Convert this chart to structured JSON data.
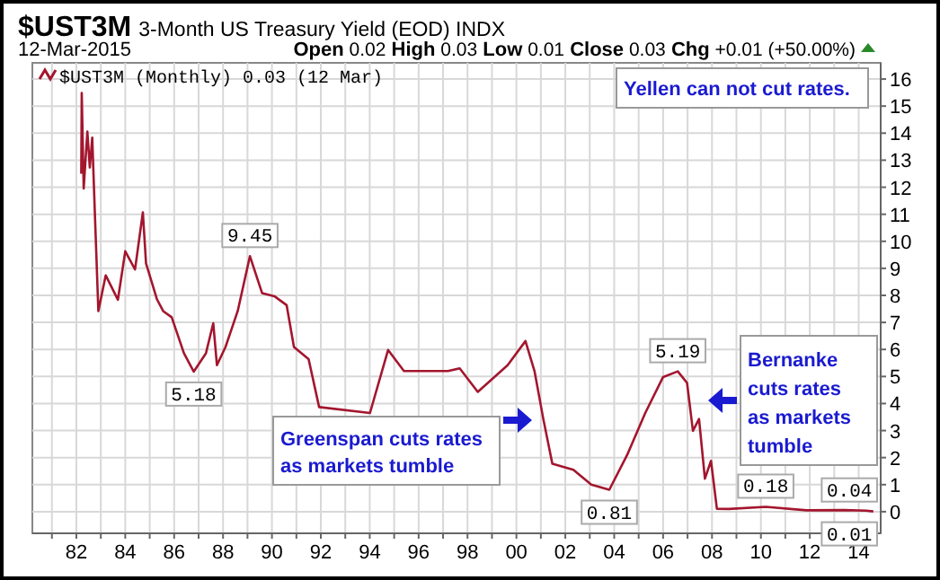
{
  "chart_data": {
    "type": "line",
    "title": "$UST3M",
    "subtitle": "3-Month US Treasury Yield (EOD) INDX",
    "annotations": [
      "12-Mar-2015",
      "Open 0.02 High 0.03 Low 0.01 Close 0.03 Chg +0.01 (+50.00%)",
      "Yellen can not cut rates.",
      "Greenspan cuts rates as markets tumble",
      "Bernanke cuts rates as markets tumble",
      {
        "text": "9.45",
        "x": 1989.1,
        "y": 9.45
      },
      {
        "text": "5.18",
        "x": 1986.8,
        "y": 5.18
      },
      {
        "text": "0.81",
        "x": 2003.8,
        "y": 0.81
      },
      {
        "text": "5.19",
        "x": 2006.6,
        "y": 5.19
      },
      {
        "text": "0.18",
        "x": 2010.2,
        "y": 0.18
      },
      {
        "text": "0.04",
        "x": 2014.3,
        "y": 0.04
      },
      {
        "text": "0.01",
        "x": 2014.6,
        "y": 0.01
      }
    ],
    "x": [
      1982.2,
      1982.22,
      1982.3,
      1982.45,
      1982.55,
      1982.65,
      1982.76,
      1982.9,
      1983.2,
      1983.7,
      1984.0,
      1984.4,
      1984.72,
      1984.85,
      1985.3,
      1985.55,
      1985.9,
      1986.4,
      1986.8,
      1987.3,
      1987.6,
      1987.75,
      1988.1,
      1988.6,
      1989.1,
      1989.6,
      1990.1,
      1990.6,
      1990.9,
      1991.5,
      1991.93,
      1992.3,
      1992.9,
      1993.5,
      1994.01,
      1994.75,
      1995.4,
      1996.2,
      1997.2,
      1997.68,
      1998.42,
      1999.64,
      2000.37,
      2000.74,
      2001.1,
      2001.47,
      2002.33,
      2003.06,
      2003.8,
      2004.53,
      2005.27,
      2006.0,
      2006.6,
      2006.98,
      2007.22,
      2007.47,
      2007.71,
      2007.96,
      2008.2,
      2008.69,
      2010.2,
      2011.87,
      2013.4,
      2014.3,
      2014.6
    ],
    "series": [
      {
        "name": "$UST3M (Monthly) 0.03 (12 Mar)",
        "color": "#a3162e",
        "values": [
          12.5,
          15.49,
          11.95,
          14.06,
          12.73,
          13.83,
          10.96,
          7.42,
          8.74,
          7.84,
          9.63,
          8.96,
          11.07,
          9.18,
          7.85,
          7.42,
          7.19,
          5.86,
          5.18,
          5.86,
          6.97,
          5.42,
          6.09,
          7.42,
          9.45,
          8.08,
          7.97,
          7.64,
          6.09,
          5.64,
          3.87,
          null,
          null,
          null,
          3.65,
          5.98,
          5.2,
          5.2,
          5.2,
          5.3,
          4.43,
          5.42,
          6.31,
          5.2,
          3.43,
          1.77,
          1.55,
          1.0,
          0.81,
          2.1,
          3.65,
          4.98,
          5.19,
          4.76,
          2.99,
          3.43,
          1.22,
          1.88,
          0.11,
          0.1,
          0.18,
          0.05,
          0.06,
          0.04,
          0.01
        ]
      }
    ],
    "xlim": [
      1980.2,
      2014.9
    ],
    "ylim": [
      -0.8,
      16.6
    ],
    "xticks": [
      {
        "value": 1981,
        "label": null
      },
      {
        "value": 1982,
        "label": "82"
      },
      {
        "value": 1983,
        "label": null
      },
      {
        "value": 1984,
        "label": "84"
      },
      {
        "value": 1985,
        "label": null
      },
      {
        "value": 1986,
        "label": "86"
      },
      {
        "value": 1987,
        "label": null
      },
      {
        "value": 1988,
        "label": "88"
      },
      {
        "value": 1989,
        "label": null
      },
      {
        "value": 1990,
        "label": "90"
      },
      {
        "value": 1991,
        "label": null
      },
      {
        "value": 1992,
        "label": "92"
      },
      {
        "value": 1993,
        "label": null
      },
      {
        "value": 1994,
        "label": "94"
      },
      {
        "value": 1995,
        "label": null
      },
      {
        "value": 1996,
        "label": "96"
      },
      {
        "value": 1997,
        "label": null
      },
      {
        "value": 1998,
        "label": "98"
      },
      {
        "value": 1999,
        "label": null
      },
      {
        "value": 2000,
        "label": "00"
      },
      {
        "value": 2001,
        "label": null
      },
      {
        "value": 2002,
        "label": "02"
      },
      {
        "value": 2003,
        "label": null
      },
      {
        "value": 2004,
        "label": "04"
      },
      {
        "value": 2005,
        "label": null
      },
      {
        "value": 2006,
        "label": "06"
      },
      {
        "value": 2007,
        "label": null
      },
      {
        "value": 2008,
        "label": "08"
      },
      {
        "value": 2009,
        "label": null
      },
      {
        "value": 2010,
        "label": "10"
      },
      {
        "value": 2011,
        "label": null
      },
      {
        "value": 2012,
        "label": "12"
      },
      {
        "value": 2013,
        "label": null
      },
      {
        "value": 2014,
        "label": "14"
      }
    ],
    "yticks": [
      0,
      1,
      2,
      3,
      4,
      5,
      6,
      7,
      8,
      9,
      10,
      11,
      12,
      13,
      14,
      15,
      16
    ],
    "grid": true,
    "legend": "top left"
  }
}
